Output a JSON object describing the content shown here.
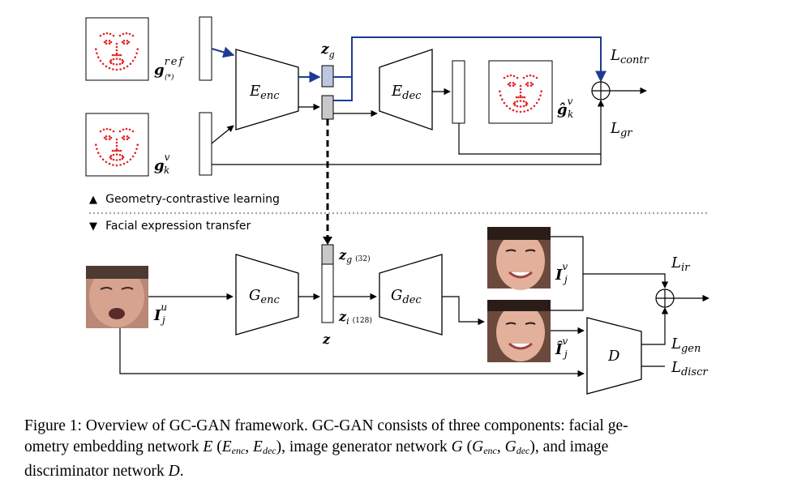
{
  "diagram": {
    "top": {
      "g_ref": {
        "base": "g",
        "sup": "ref",
        "sub": "(*)"
      },
      "g_k_v": {
        "base": "g",
        "sup": "v",
        "sub": "k"
      },
      "e_enc": {
        "base": "E",
        "sub": "enc"
      },
      "e_dec": {
        "base": "E",
        "sub": "dec"
      },
      "z_g": {
        "base": "z",
        "sub": "g"
      },
      "g_hat": {
        "base": "ĝ",
        "sup": "v",
        "sub": "k"
      },
      "l_contr": {
        "base": "L",
        "sub": "contr"
      },
      "l_gr": {
        "base": "L",
        "sub": "gr"
      }
    },
    "legend": {
      "up": "Geometry-contrastive learning",
      "down": "Facial expression transfer"
    },
    "bottom": {
      "i_j_u": {
        "base": "I",
        "sup": "u",
        "sub": "j"
      },
      "g_enc": {
        "base": "G",
        "sub": "enc"
      },
      "g_dec": {
        "base": "G",
        "sub": "dec"
      },
      "z_g32": {
        "base": "z",
        "sub": "g",
        "size": "(32)"
      },
      "z_i128": {
        "base": "z",
        "sub": "i",
        "size": "(128)"
      },
      "z": "z",
      "i_j_v": {
        "base": "I",
        "sup": "v",
        "sub": "j"
      },
      "i_hat_j_v": {
        "base": "Î",
        "sup": "v",
        "sub": "j"
      },
      "d": "D",
      "l_ir": {
        "base": "L",
        "sub": "ir"
      },
      "l_gen": {
        "base": "L",
        "sub": "gen"
      },
      "l_discr": {
        "base": "L",
        "sub": "discr"
      }
    }
  },
  "caption": {
    "p1": "Figure 1: Overview of GC-GAN framework. GC-GAN consists of three components: facial ge-",
    "p2a": "ometry embedding network ",
    "E": "E",
    "p2b": " (",
    "Eenc": "E",
    "Eenc_sub": "enc",
    "comma1": ", ",
    "Edec": "E",
    "Edec_sub": "dec",
    "p2c": "), image generator network ",
    "G": "G",
    "p2d": " (",
    "Genc": "G",
    "Genc_sub": "enc",
    "comma2": ", ",
    "Gdec": "G",
    "Gdec_sub": "dec",
    "p2e": "), and image",
    "p3a": "discriminator network ",
    "D": "D",
    "p3b": "."
  },
  "colors": {
    "landmark": "#e0262a",
    "contrastive_line": "#1f3a93",
    "code_fill": "#c8c8c8"
  }
}
